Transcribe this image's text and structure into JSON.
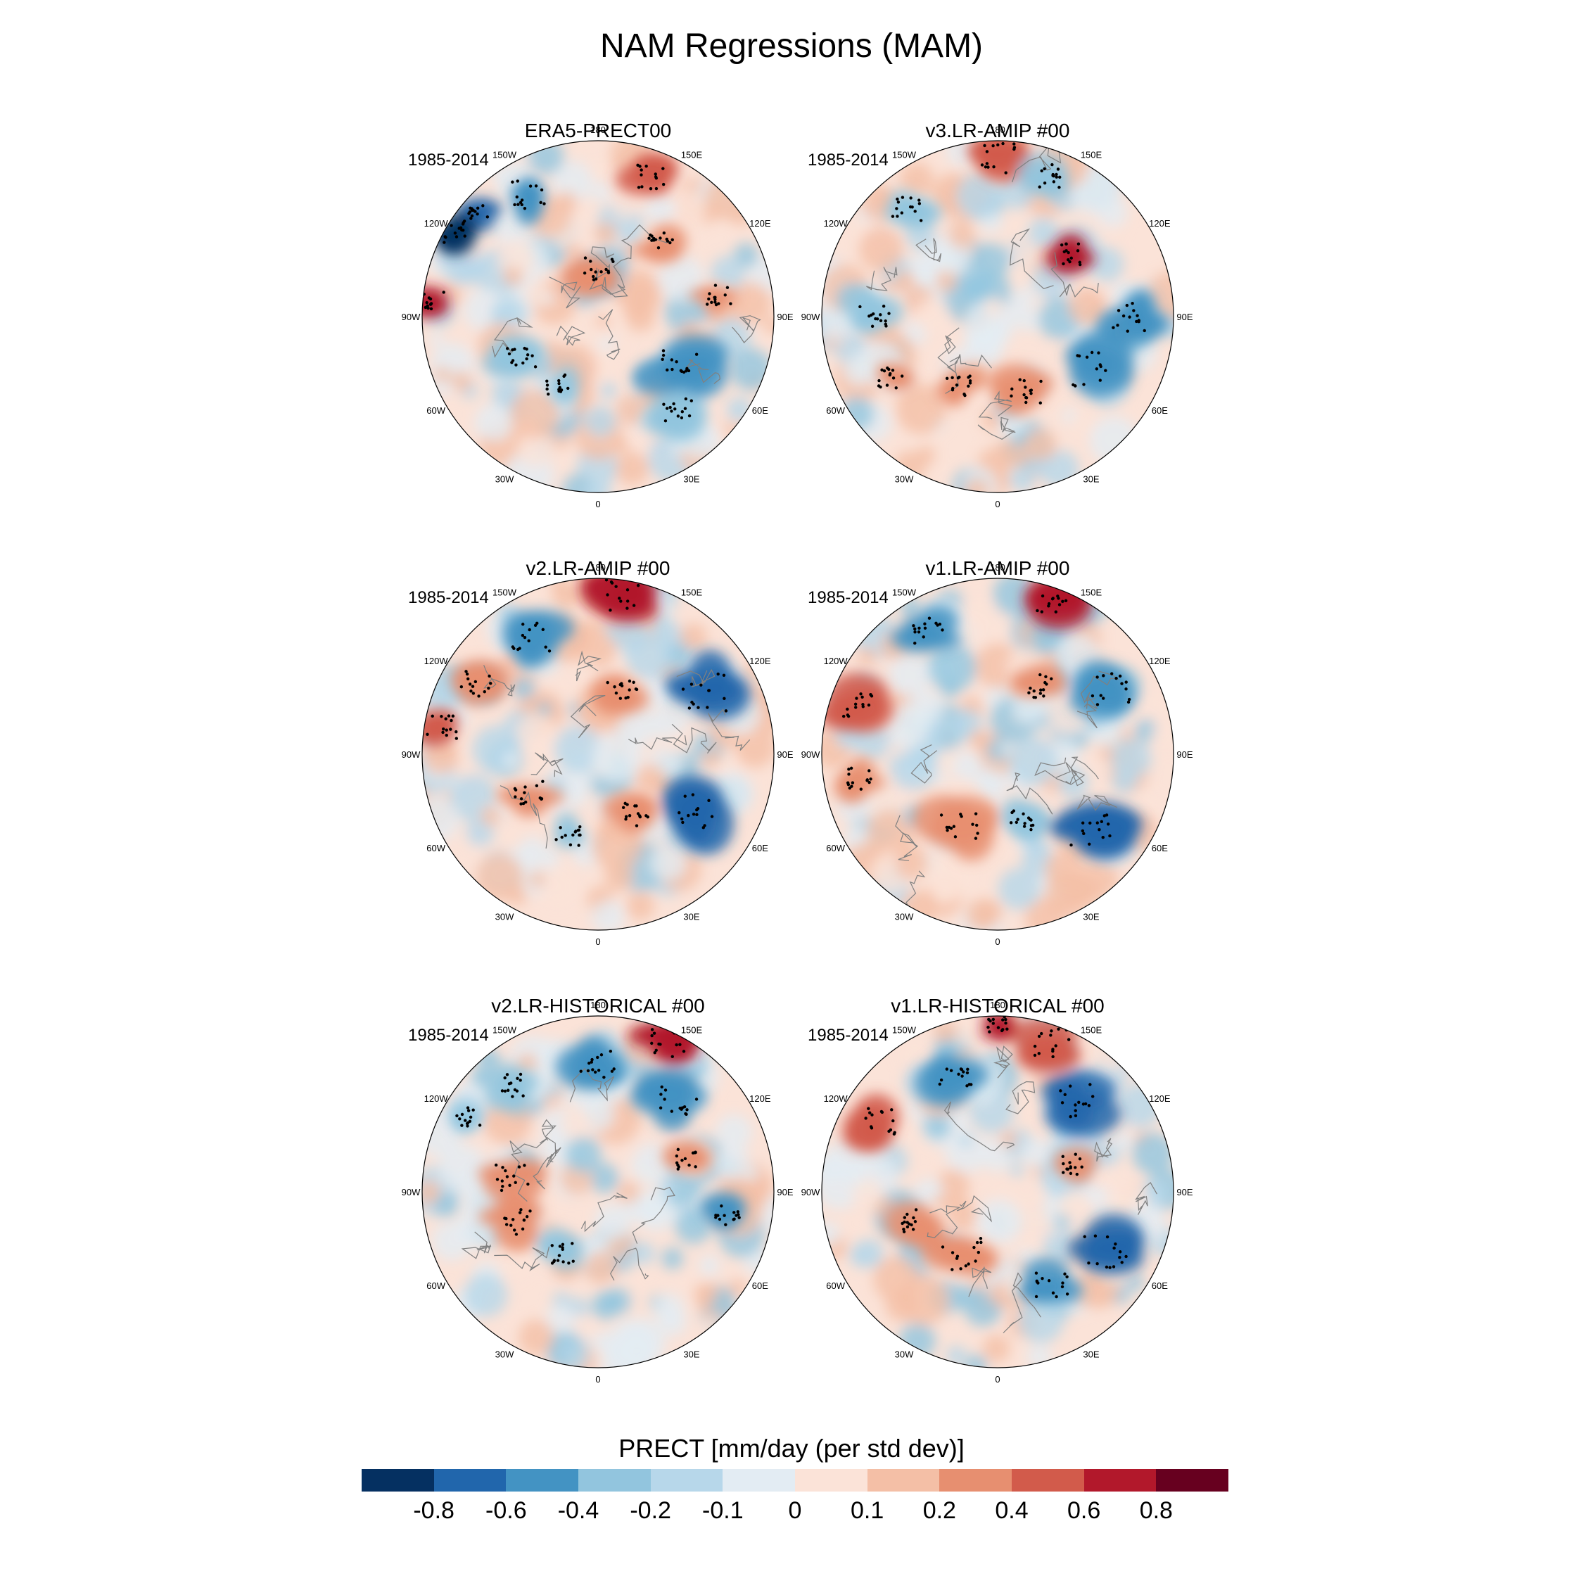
{
  "chart_data": {
    "type": "heatmap",
    "projection": "north-polar-stereographic",
    "title": "NAM Regressions (MAM)",
    "variable_label": "PRECT [mm/day (per std dev)]",
    "period": "1985-2014",
    "longitude_labels": [
      "180",
      "150E",
      "120E",
      "90E",
      "60E",
      "30E",
      "0",
      "30W",
      "60W",
      "90W",
      "120W",
      "150W"
    ],
    "colorbar": {
      "levels": [
        "-0.8",
        "-0.6",
        "-0.4",
        "-0.2",
        "-0.1",
        "0",
        "0.1",
        "0.2",
        "0.4",
        "0.6",
        "0.8"
      ],
      "colors": [
        "#053061",
        "#2166ac",
        "#4393c3",
        "#92c5de",
        "#b7d7ea",
        "#e3ecf3",
        "#fbe3d8",
        "#f4bfa6",
        "#e78f70",
        "#d25b4b",
        "#b2182b",
        "#67001f"
      ]
    },
    "panels": [
      {
        "title": "ERA5-PRECT00",
        "period": "1985-2014"
      },
      {
        "title": "v3.LR-AMIP  #00",
        "period": "1985-2014"
      },
      {
        "title": "v2.LR-AMIP  #00",
        "period": "1985-2014"
      },
      {
        "title": "v1.LR-AMIP  #00",
        "period": "1985-2014"
      },
      {
        "title": "v2.LR-HISTORICAL  #00",
        "period": "1985-2014"
      },
      {
        "title": "v1.LR-HISTORICAL  #00",
        "period": "1985-2014"
      }
    ]
  },
  "colors": {
    "coast": "#808080",
    "stipple": "#000000"
  }
}
